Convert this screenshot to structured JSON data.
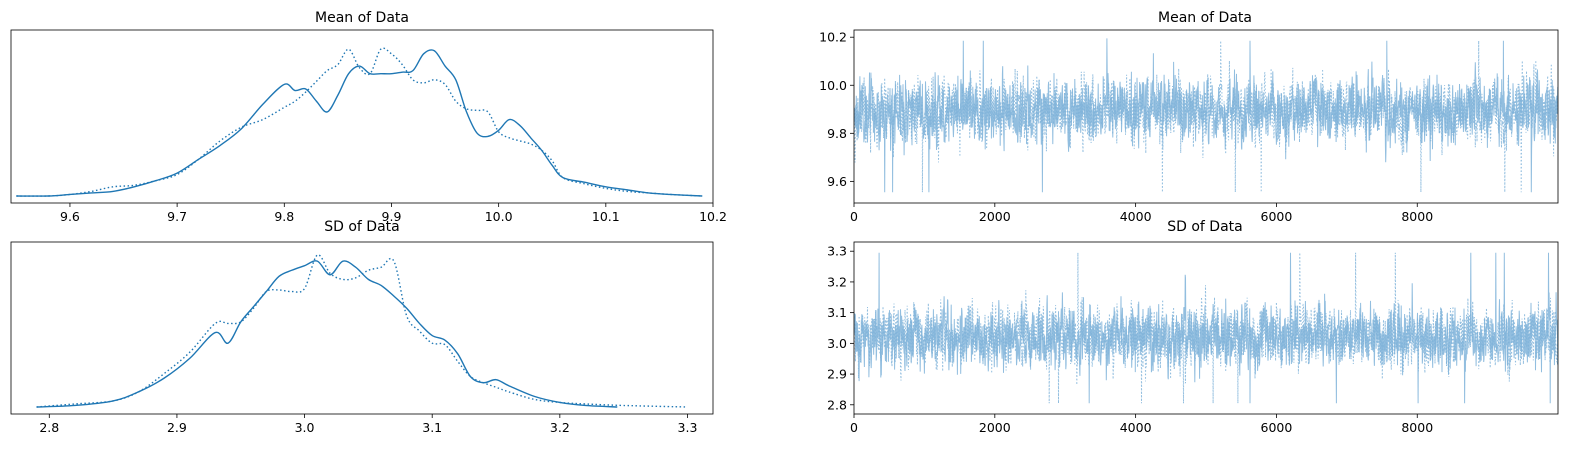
{
  "figure": {
    "facecolor": "#ffffff",
    "line_color": "#1f77b4",
    "trace_color": "#7fb3d9"
  },
  "chart_data": [
    {
      "id": "mean-density",
      "type": "line",
      "title": "Mean of Data",
      "xlim": [
        9.545,
        10.2
      ],
      "xticks": [
        9.6,
        9.7,
        9.8,
        9.9,
        10.0,
        10.1,
        10.2
      ],
      "xtick_labels": [
        "9.6",
        "9.7",
        "9.8",
        "9.9",
        "10.0",
        "10.1",
        "10.2"
      ],
      "yticks": [],
      "ylim": [
        0,
        1.04
      ],
      "grid": false,
      "series": [
        {
          "style": "solid",
          "x": [
            9.55,
            9.58,
            9.6,
            9.62,
            9.64,
            9.66,
            9.68,
            9.7,
            9.72,
            9.74,
            9.76,
            9.78,
            9.8,
            9.81,
            9.82,
            9.83,
            9.84,
            9.85,
            9.86,
            9.87,
            9.88,
            9.89,
            9.9,
            9.91,
            9.92,
            9.93,
            9.94,
            9.95,
            9.96,
            9.97,
            9.98,
            9.99,
            10.0,
            10.01,
            10.02,
            10.03,
            10.04,
            10.05,
            10.06,
            10.08,
            10.1,
            10.12,
            10.14,
            10.16,
            10.19
          ],
          "y": [
            0.0,
            0.0,
            0.01,
            0.02,
            0.03,
            0.06,
            0.1,
            0.15,
            0.24,
            0.33,
            0.44,
            0.6,
            0.73,
            0.69,
            0.7,
            0.62,
            0.55,
            0.66,
            0.8,
            0.85,
            0.8,
            0.8,
            0.8,
            0.81,
            0.82,
            0.93,
            0.95,
            0.85,
            0.76,
            0.55,
            0.41,
            0.39,
            0.43,
            0.5,
            0.46,
            0.38,
            0.3,
            0.2,
            0.12,
            0.09,
            0.06,
            0.04,
            0.02,
            0.01,
            0.0
          ]
        },
        {
          "style": "dotted",
          "x": [
            9.55,
            9.58,
            9.6,
            9.62,
            9.64,
            9.66,
            9.68,
            9.7,
            9.72,
            9.74,
            9.76,
            9.78,
            9.8,
            9.81,
            9.82,
            9.83,
            9.84,
            9.85,
            9.86,
            9.87,
            9.88,
            9.89,
            9.9,
            9.91,
            9.92,
            9.93,
            9.94,
            9.95,
            9.96,
            9.97,
            9.98,
            9.99,
            10.0,
            10.01,
            10.02,
            10.03,
            10.04,
            10.05,
            10.06,
            10.08,
            10.1,
            10.12,
            10.14,
            10.16,
            10.19
          ],
          "y": [
            0.0,
            0.0,
            0.01,
            0.03,
            0.06,
            0.07,
            0.1,
            0.14,
            0.24,
            0.36,
            0.45,
            0.5,
            0.58,
            0.62,
            0.68,
            0.75,
            0.82,
            0.86,
            0.96,
            0.84,
            0.8,
            0.96,
            0.93,
            0.86,
            0.76,
            0.74,
            0.76,
            0.73,
            0.62,
            0.57,
            0.56,
            0.55,
            0.42,
            0.38,
            0.36,
            0.34,
            0.3,
            0.23,
            0.12,
            0.08,
            0.05,
            0.03,
            0.02,
            0.01,
            0.0
          ]
        }
      ]
    },
    {
      "id": "mean-trace",
      "type": "line",
      "title": "Mean of Data",
      "xlim": [
        0,
        9999
      ],
      "ylim": [
        9.51,
        10.23
      ],
      "xticks": [
        0,
        2000,
        4000,
        6000,
        8000
      ],
      "xtick_labels": [
        "0",
        "2000",
        "4000",
        "6000",
        "8000"
      ],
      "yticks": [
        9.6,
        9.8,
        10.0,
        10.2
      ],
      "ytick_labels": [
        "9.6",
        "9.8",
        "10.0",
        "10.2"
      ],
      "grid": false,
      "trace": {
        "n": 10000,
        "mean": 9.895,
        "sd": 0.095,
        "min": 9.545,
        "max": 10.195
      }
    },
    {
      "id": "sd-density",
      "type": "line",
      "title": "SD of Data",
      "xlim": [
        2.77,
        3.32
      ],
      "xticks": [
        2.8,
        2.9,
        3.0,
        3.1,
        3.2,
        3.3
      ],
      "xtick_labels": [
        "2.8",
        "2.9",
        "3.0",
        "3.1",
        "3.2",
        "3.3"
      ],
      "yticks": [],
      "ylim": [
        0,
        1.04
      ],
      "grid": false,
      "series": [
        {
          "style": "solid",
          "x": [
            2.79,
            2.82,
            2.85,
            2.87,
            2.89,
            2.91,
            2.93,
            2.94,
            2.95,
            2.96,
            2.97,
            2.98,
            2.99,
            3.0,
            3.01,
            3.02,
            3.03,
            3.04,
            3.05,
            3.06,
            3.07,
            3.08,
            3.09,
            3.1,
            3.11,
            3.12,
            3.13,
            3.14,
            3.15,
            3.16,
            3.18,
            3.2,
            3.22,
            3.245
          ],
          "y": [
            0.0,
            0.01,
            0.04,
            0.1,
            0.19,
            0.32,
            0.49,
            0.42,
            0.56,
            0.66,
            0.76,
            0.86,
            0.9,
            0.93,
            0.96,
            0.87,
            0.96,
            0.92,
            0.84,
            0.8,
            0.73,
            0.65,
            0.55,
            0.47,
            0.44,
            0.35,
            0.2,
            0.16,
            0.18,
            0.14,
            0.07,
            0.03,
            0.01,
            0.0
          ]
        },
        {
          "style": "dotted",
          "x": [
            2.79,
            2.82,
            2.85,
            2.87,
            2.89,
            2.91,
            2.93,
            2.94,
            2.95,
            2.96,
            2.97,
            2.98,
            2.99,
            3.0,
            3.01,
            3.02,
            3.03,
            3.04,
            3.05,
            3.06,
            3.07,
            3.08,
            3.09,
            3.1,
            3.11,
            3.12,
            3.13,
            3.14,
            3.15,
            3.16,
            3.18,
            3.2,
            3.22,
            3.25,
            3.3
          ],
          "y": [
            0.0,
            0.02,
            0.04,
            0.1,
            0.22,
            0.36,
            0.55,
            0.55,
            0.56,
            0.65,
            0.76,
            0.77,
            0.76,
            0.78,
            1.0,
            0.88,
            0.84,
            0.85,
            0.9,
            0.92,
            0.96,
            0.6,
            0.5,
            0.42,
            0.41,
            0.3,
            0.2,
            0.16,
            0.13,
            0.1,
            0.05,
            0.03,
            0.02,
            0.01,
            0.0
          ]
        }
      ]
    },
    {
      "id": "sd-trace",
      "type": "line",
      "title": "SD of Data",
      "xlim": [
        0,
        9999
      ],
      "ylim": [
        2.77,
        3.33
      ],
      "xticks": [
        0,
        2000,
        4000,
        6000,
        8000
      ],
      "xtick_labels": [
        "0",
        "2000",
        "4000",
        "6000",
        "8000"
      ],
      "yticks": [
        2.8,
        2.9,
        3.0,
        3.1,
        3.2,
        3.3
      ],
      "ytick_labels": [
        "2.8",
        "2.9",
        "3.0",
        "3.1",
        "3.2",
        "3.3"
      ],
      "grid": false,
      "trace": {
        "n": 10000,
        "mean": 3.02,
        "sd": 0.07,
        "min": 2.795,
        "max": 3.305
      }
    }
  ]
}
